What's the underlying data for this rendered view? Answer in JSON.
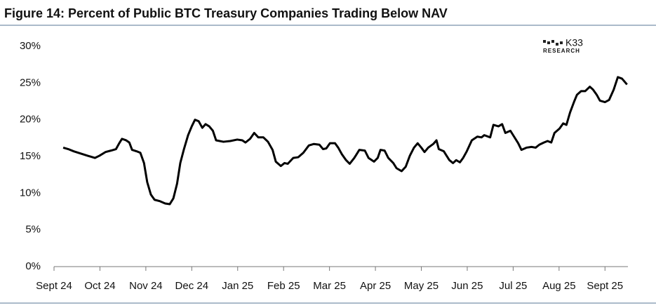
{
  "chart_data": {
    "type": "line",
    "title": "Figure 14: Percent of Public BTC Treasury Companies Trading Below NAV",
    "logo": "K33",
    "logo_subtitle": "RESEARCH",
    "x": [
      0.2,
      0.31,
      0.43,
      0.58,
      0.73,
      0.89,
      0.99,
      1.12,
      1.24,
      1.35,
      1.42,
      1.48,
      1.57,
      1.64,
      1.7,
      1.8,
      1.88,
      1.96,
      2.03,
      2.11,
      2.19,
      2.31,
      2.42,
      2.52,
      2.6,
      2.68,
      2.75,
      2.83,
      2.92,
      3.0,
      3.07,
      3.15,
      3.23,
      3.3,
      3.38,
      3.46,
      3.53,
      3.69,
      3.84,
      3.99,
      4.1,
      4.17,
      4.27,
      4.36,
      4.45,
      4.56,
      4.66,
      4.76,
      4.83,
      4.94,
      5.02,
      5.09,
      5.21,
      5.32,
      5.43,
      5.55,
      5.66,
      5.78,
      5.86,
      5.93,
      6.01,
      6.12,
      6.19,
      6.27,
      6.36,
      6.44,
      6.54,
      6.65,
      6.77,
      6.85,
      6.97,
      7.05,
      7.11,
      7.2,
      7.28,
      7.39,
      7.46,
      7.57,
      7.66,
      7.75,
      7.84,
      7.92,
      8.0,
      8.07,
      8.15,
      8.26,
      8.33,
      8.38,
      8.49,
      8.61,
      8.69,
      8.76,
      8.84,
      8.91,
      8.99,
      9.1,
      9.22,
      9.31,
      9.37,
      9.5,
      9.57,
      9.68,
      9.76,
      9.83,
      9.94,
      10.02,
      10.11,
      10.18,
      10.29,
      10.4,
      10.49,
      10.57,
      10.67,
      10.75,
      10.83,
      10.9,
      11.01,
      11.09,
      11.16,
      11.24,
      11.33,
      11.39,
      11.48,
      11.57,
      11.67,
      11.74,
      11.82,
      11.89,
      12.0,
      12.09,
      12.19,
      12.28,
      12.37,
      12.48
    ],
    "series": [
      {
        "color": "#000000",
        "values": [
          16.2,
          16.0,
          15.7,
          15.4,
          15.1,
          14.8,
          15.1,
          15.6,
          15.8,
          16.0,
          16.8,
          17.4,
          17.2,
          16.9,
          15.9,
          15.7,
          15.5,
          14.1,
          11.5,
          9.8,
          9.1,
          8.9,
          8.6,
          8.5,
          9.3,
          11.3,
          14.1,
          16.0,
          17.9,
          19.1,
          20.0,
          19.8,
          18.9,
          19.4,
          19.1,
          18.5,
          17.2,
          17.0,
          17.1,
          17.3,
          17.2,
          16.9,
          17.4,
          18.2,
          17.6,
          17.6,
          17.0,
          15.9,
          14.3,
          13.7,
          14.1,
          14.0,
          14.8,
          14.9,
          15.5,
          16.5,
          16.7,
          16.6,
          16.0,
          16.1,
          16.8,
          16.8,
          16.2,
          15.3,
          14.5,
          14.0,
          14.8,
          15.9,
          15.8,
          14.8,
          14.3,
          14.8,
          15.9,
          15.8,
          14.8,
          14.1,
          13.4,
          13.0,
          13.6,
          15.1,
          16.2,
          16.8,
          16.2,
          15.6,
          16.2,
          16.7,
          17.2,
          16.0,
          15.7,
          14.5,
          14.1,
          14.5,
          14.2,
          14.8,
          15.7,
          17.2,
          17.7,
          17.6,
          17.9,
          17.6,
          19.3,
          19.1,
          19.4,
          18.2,
          18.5,
          17.7,
          16.8,
          15.9,
          16.2,
          16.3,
          16.2,
          16.6,
          16.9,
          17.1,
          16.9,
          18.2,
          18.8,
          19.5,
          19.3,
          21.0,
          22.5,
          23.4,
          23.9,
          23.9,
          24.5,
          24.1,
          23.4,
          22.6,
          22.4,
          22.7,
          24.1,
          25.8,
          25.6,
          24.8
        ]
      }
    ],
    "xlim": [
      0,
      12.5
    ],
    "xticks": [
      {
        "value": 0,
        "label": "Sept 24"
      },
      {
        "value": 1,
        "label": "Oct 24"
      },
      {
        "value": 2,
        "label": "Nov 24"
      },
      {
        "value": 3,
        "label": "Dec 24"
      },
      {
        "value": 4,
        "label": "Jan 25"
      },
      {
        "value": 5,
        "label": "Feb 25"
      },
      {
        "value": 6,
        "label": "Mar 25"
      },
      {
        "value": 7,
        "label": "Apr 25"
      },
      {
        "value": 8,
        "label": "May 25"
      },
      {
        "value": 9,
        "label": "Jun 25"
      },
      {
        "value": 10,
        "label": "Jul 25"
      },
      {
        "value": 11,
        "label": "Aug 25"
      },
      {
        "value": 12,
        "label": "Sept 25"
      }
    ],
    "ylim": [
      0,
      30
    ],
    "yticks": [
      {
        "value": 0,
        "label": "0%"
      },
      {
        "value": 5,
        "label": "5%"
      },
      {
        "value": 10,
        "label": "10%"
      },
      {
        "value": 15,
        "label": "15%"
      },
      {
        "value": 20,
        "label": "20%"
      },
      {
        "value": 25,
        "label": "25%"
      },
      {
        "value": 30,
        "label": "30%"
      }
    ],
    "grid": false
  }
}
